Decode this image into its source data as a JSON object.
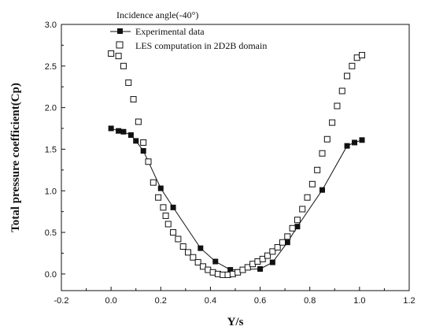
{
  "chart_data": {
    "type": "scatter",
    "xlabel": "Y/s",
    "ylabel": "Total pressure coefficient(Cp)",
    "xlim": [
      -0.2,
      1.2
    ],
    "ylim": [
      -0.2,
      3.0
    ],
    "xticks": [
      -0.2,
      0.0,
      0.2,
      0.4,
      0.6,
      0.8,
      1.0,
      1.2
    ],
    "xtick_labels": [
      "-0.2",
      "0.0",
      "0.2",
      "0.4",
      "0.6",
      "0.8",
      "1.0",
      "1.2"
    ],
    "yticks": [
      0.0,
      0.5,
      1.0,
      1.5,
      2.0,
      2.5,
      3.0
    ],
    "ytick_labels": [
      "0.0",
      "0.5",
      "1.0",
      "1.5",
      "2.0",
      "2.5",
      "3.0"
    ],
    "grid": false,
    "legend_position": "top-left",
    "legend_title": "Incidence angle(-40°)",
    "series": [
      {
        "name": "Experimental data",
        "marker": "filled-square",
        "line": true,
        "color": "#111111",
        "x": [
          0.0,
          0.03,
          0.05,
          0.08,
          0.1,
          0.13,
          0.2,
          0.25,
          0.36,
          0.42,
          0.48,
          0.6,
          0.65,
          0.71,
          0.75,
          0.85,
          0.95,
          0.98,
          1.01
        ],
        "y": [
          1.75,
          1.72,
          1.71,
          1.67,
          1.6,
          1.48,
          1.03,
          0.8,
          0.31,
          0.15,
          0.05,
          0.06,
          0.14,
          0.38,
          0.57,
          1.01,
          1.54,
          1.58,
          1.61
        ]
      },
      {
        "name": "LES computation in 2D2B domain",
        "marker": "open-square",
        "line": false,
        "color": "#111111",
        "x": [
          0.0,
          0.03,
          0.05,
          0.07,
          0.09,
          0.11,
          0.13,
          0.15,
          0.17,
          0.19,
          0.21,
          0.22,
          0.23,
          0.25,
          0.27,
          0.29,
          0.31,
          0.33,
          0.35,
          0.37,
          0.39,
          0.41,
          0.43,
          0.45,
          0.47,
          0.49,
          0.51,
          0.53,
          0.55,
          0.57,
          0.59,
          0.61,
          0.63,
          0.65,
          0.67,
          0.69,
          0.71,
          0.73,
          0.75,
          0.77,
          0.79,
          0.81,
          0.83,
          0.85,
          0.87,
          0.89,
          0.91,
          0.93,
          0.95,
          0.97,
          0.99,
          1.01
        ],
        "y": [
          2.65,
          2.62,
          2.5,
          2.3,
          2.1,
          1.83,
          1.58,
          1.35,
          1.1,
          0.92,
          0.8,
          0.7,
          0.6,
          0.5,
          0.42,
          0.33,
          0.26,
          0.2,
          0.14,
          0.09,
          0.05,
          0.02,
          0.0,
          -0.01,
          -0.01,
          0.0,
          0.02,
          0.05,
          0.08,
          0.12,
          0.15,
          0.18,
          0.22,
          0.27,
          0.32,
          0.38,
          0.45,
          0.55,
          0.65,
          0.78,
          0.92,
          1.08,
          1.25,
          1.45,
          1.62,
          1.82,
          2.02,
          2.2,
          2.38,
          2.5,
          2.6,
          2.63
        ]
      }
    ]
  }
}
